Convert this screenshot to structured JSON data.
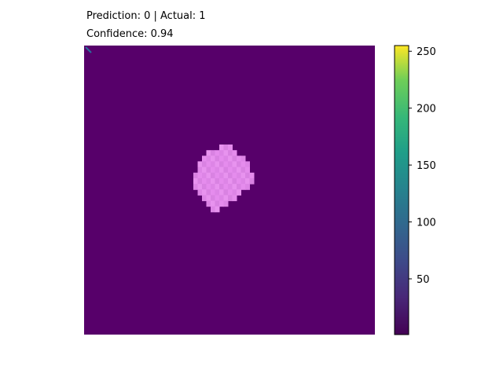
{
  "title": {
    "prediction": "Prediction: 0 | Actual: 1",
    "confidence": "Confidence: 0.94"
  },
  "chart_data": {
    "type": "heatmap",
    "colormap": "viridis",
    "background_value": 0,
    "colorbar": {
      "range": [
        1,
        255
      ],
      "ticks": [
        50,
        100,
        150,
        200,
        250
      ]
    },
    "overlay_color": "#e58ced",
    "blob_rows": [
      {
        "row": 0,
        "from": 10,
        "to": 13
      },
      {
        "row": 1,
        "from": 7,
        "to": 14
      },
      {
        "row": 2,
        "from": 6,
        "to": 16
      },
      {
        "row": 3,
        "from": 5,
        "to": 17
      },
      {
        "row": 4,
        "from": 5,
        "to": 17
      },
      {
        "row": 5,
        "from": 4,
        "to": 18
      },
      {
        "row": 6,
        "from": 4,
        "to": 18
      },
      {
        "row": 7,
        "from": 4,
        "to": 17
      },
      {
        "row": 8,
        "from": 5,
        "to": 15
      },
      {
        "row": 9,
        "from": 6,
        "to": 14
      },
      {
        "row": 10,
        "from": 7,
        "to": 12
      },
      {
        "row": 11,
        "from": 8,
        "to": 10
      }
    ],
    "colors": {
      "viridis_low": "#440154",
      "background": "#57006a",
      "axis": "#000000"
    }
  }
}
